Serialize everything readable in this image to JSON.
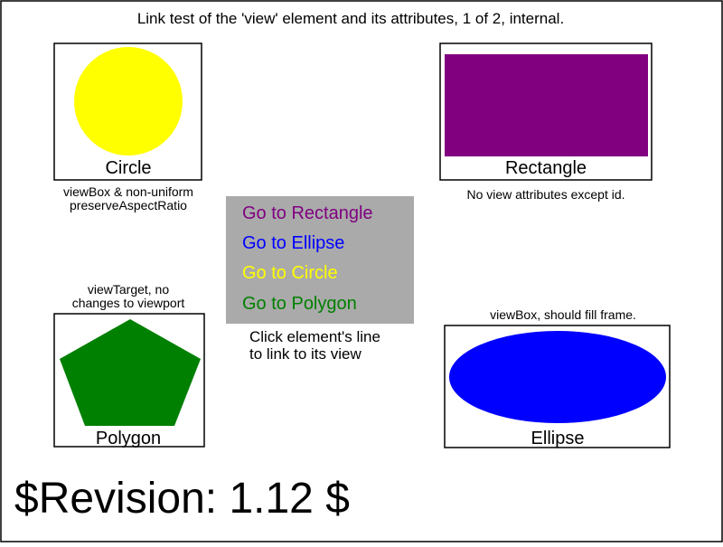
{
  "title": "Link test of the 'view' element and its attributes, 1 of 2, internal.",
  "circle": {
    "label": "Circle",
    "note_line1": "viewBox & non-uniform",
    "note_line2": "preserveAspectRatio",
    "fill": "#ffff00"
  },
  "rectangle": {
    "label": "Rectangle",
    "note": "No view attributes except id.",
    "fill": "#800080"
  },
  "polygon": {
    "label": "Polygon",
    "note_line1": "viewTarget, no",
    "note_line2": "changes to viewport",
    "fill": "#008000"
  },
  "ellipse": {
    "label": "Ellipse",
    "note": "viewBox, should fill frame.",
    "fill": "#0000ff"
  },
  "menu": {
    "background": "#aaaaaa",
    "items": [
      {
        "label": "Go to Rectangle",
        "color": "#800080"
      },
      {
        "label": "Go to Ellipse",
        "color": "#0000ff"
      },
      {
        "label": "Go to Circle",
        "color": "#ffff00"
      },
      {
        "label": "Go to Polygon",
        "color": "#008000"
      }
    ],
    "instruction_line1": "Click element's line",
    "instruction_line2": "to link to its view"
  },
  "revision": "$Revision: 1.12 $"
}
